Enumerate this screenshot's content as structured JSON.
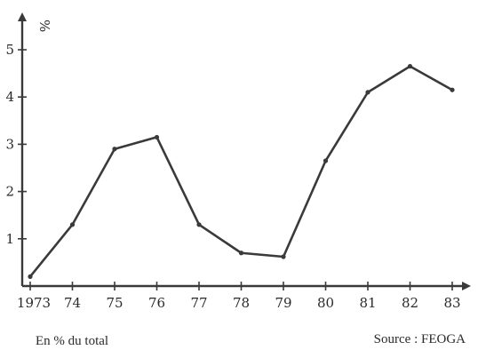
{
  "chart_data": {
    "type": "line",
    "x": [
      "1973",
      "74",
      "75",
      "76",
      "77",
      "78",
      "79",
      "80",
      "81",
      "82",
      "83"
    ],
    "values": [
      0.2,
      1.3,
      2.9,
      3.15,
      1.3,
      0.7,
      0.62,
      2.65,
      4.1,
      4.65,
      4.15
    ],
    "ylabel": "%",
    "yticks": [
      "1",
      "2",
      "3",
      "4",
      "5"
    ],
    "ylim": [
      0,
      5.7
    ],
    "grid": false,
    "line_color": "#3a3a3a"
  },
  "captions": {
    "left": "En % du total",
    "right": "Source : FEOGA"
  }
}
